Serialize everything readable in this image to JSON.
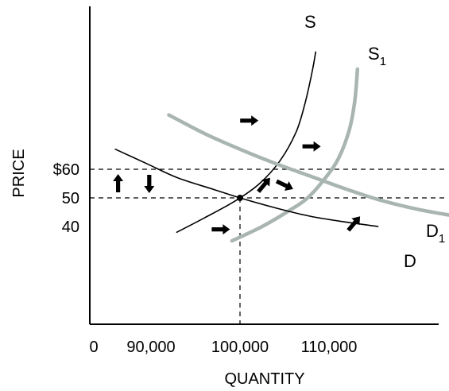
{
  "chart_data": {
    "type": "line",
    "title": "",
    "xlabel": "QUANTITY",
    "ylabel": "PRICE",
    "x_ticks": [
      {
        "label": "0",
        "value": 0
      },
      {
        "label": "90,000",
        "value": 90000
      },
      {
        "label": "100,000",
        "value": 100000
      },
      {
        "label": "110,000",
        "value": 110000
      }
    ],
    "y_ticks": [
      {
        "label": "$60",
        "value": 60
      },
      {
        "label": "50",
        "value": 50
      },
      {
        "label": "40",
        "value": 40
      }
    ],
    "equilibrium": {
      "x": 100000,
      "y": 50
    },
    "reference_lines": {
      "price_high": 60,
      "price_eq": 50,
      "quantity_eq": 100000
    },
    "series": [
      {
        "name": "S",
        "sub": "",
        "color": "#000000",
        "points": [
          [
            92900,
            38
          ],
          [
            96000,
            43
          ],
          [
            99500,
            49
          ],
          [
            102200,
            55
          ],
          [
            104500,
            63
          ],
          [
            106300,
            73
          ],
          [
            107300,
            83
          ],
          [
            108100,
            94
          ],
          [
            108500,
            101
          ]
        ]
      },
      {
        "name": "S",
        "sub": "1",
        "color": "#a9b5b0",
        "points": [
          [
            99100,
            35
          ],
          [
            102500,
            40
          ],
          [
            105500,
            45.5
          ],
          [
            107600,
            50
          ],
          [
            109600,
            57
          ],
          [
            111100,
            64
          ],
          [
            112300,
            74
          ],
          [
            112900,
            84
          ],
          [
            113200,
            95
          ]
        ]
      },
      {
        "name": "D",
        "sub": "",
        "color": "#000000",
        "points": [
          [
            86000,
            67
          ],
          [
            89500,
            62
          ],
          [
            93000,
            57
          ],
          [
            97000,
            53
          ],
          [
            100000,
            50
          ],
          [
            104000,
            46.5
          ],
          [
            108000,
            43.5
          ],
          [
            112000,
            41.5
          ],
          [
            115500,
            40
          ]
        ]
      },
      {
        "name": "D",
        "sub": "1",
        "color": "#a9b5b0",
        "points": [
          [
            92000,
            79
          ],
          [
            96000,
            72.5
          ],
          [
            100000,
            67
          ],
          [
            104000,
            62
          ],
          [
            108000,
            57.5
          ],
          [
            112000,
            53
          ],
          [
            116000,
            49
          ],
          [
            120000,
            46
          ],
          [
            123500,
            44
          ]
        ]
      }
    ],
    "arrows": [
      {
        "dir": "up",
        "x": 86300,
        "y": 55
      },
      {
        "dir": "down",
        "x": 89800,
        "y": 55
      },
      {
        "dir": "right",
        "x": 101000,
        "y": 77
      },
      {
        "dir": "up-right",
        "x": 102700,
        "y": 54.5
      },
      {
        "dir": "down-right",
        "x": 105000,
        "y": 54.5
      },
      {
        "dir": "right",
        "x": 97800,
        "y": 39
      },
      {
        "dir": "up-right",
        "x": 112800,
        "y": 41
      },
      {
        "dir": "right",
        "x": 108000,
        "y": 68
      }
    ]
  }
}
